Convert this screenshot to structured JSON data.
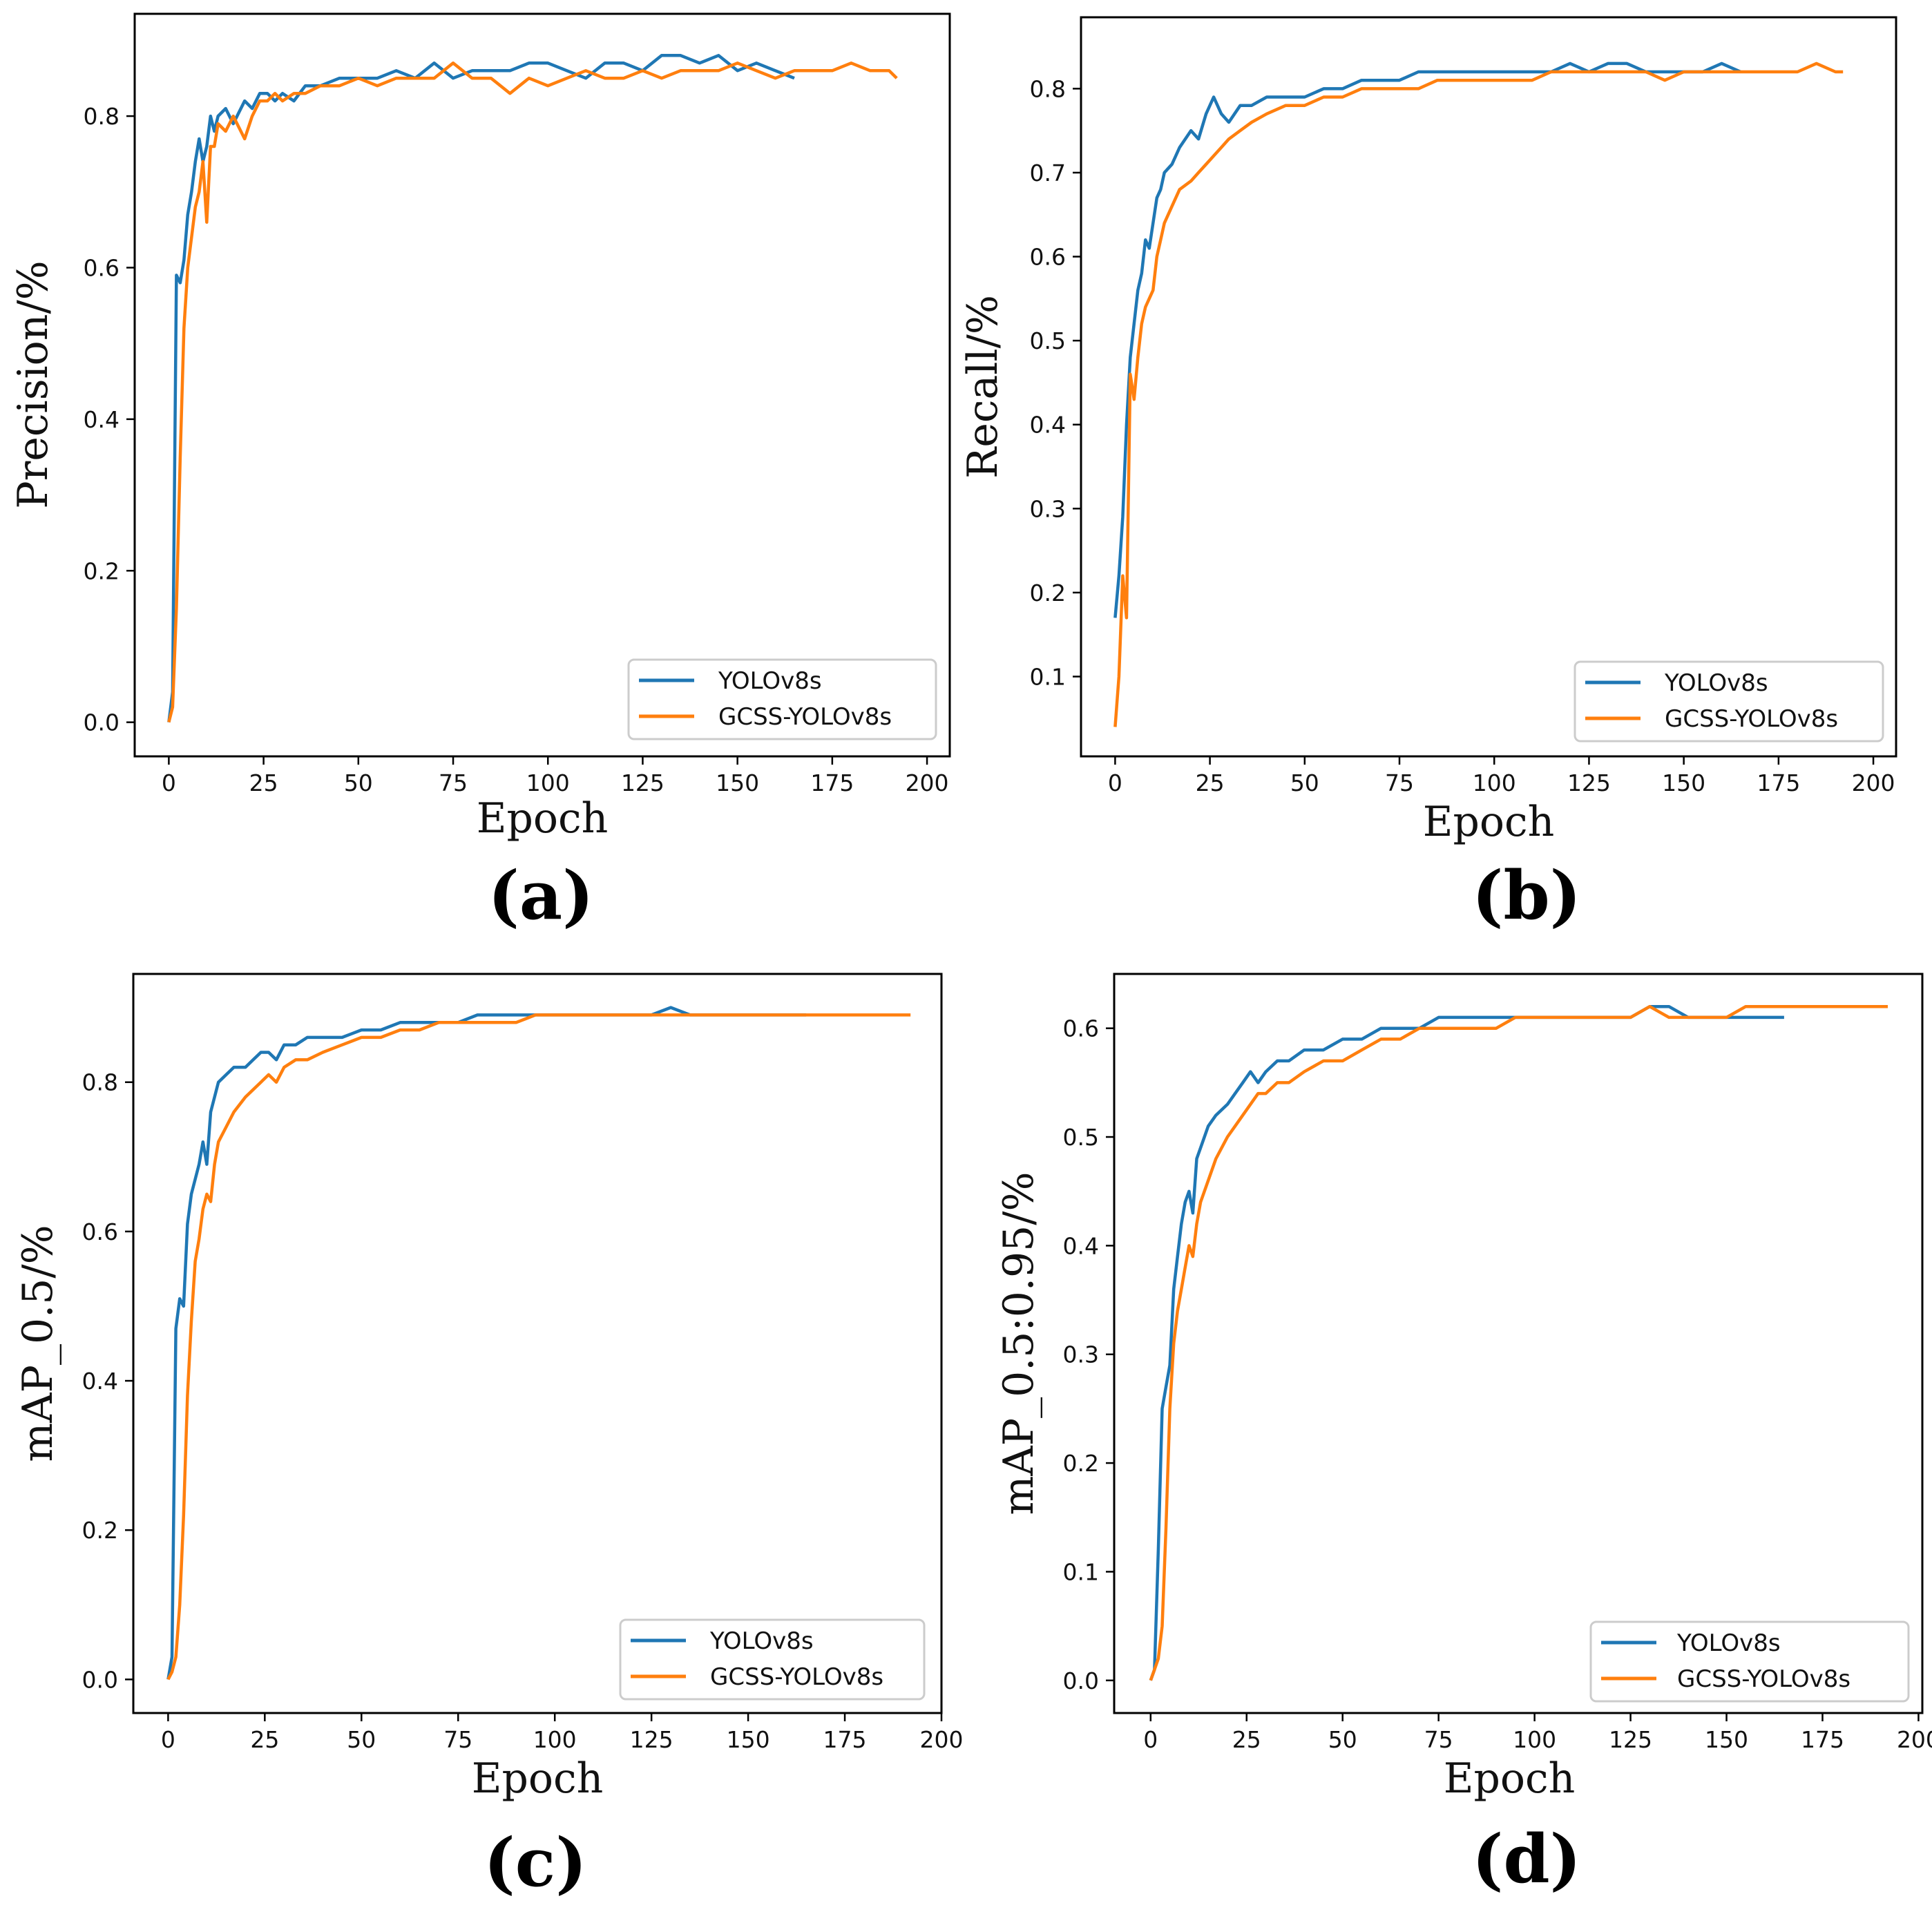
{
  "colors": {
    "series_1": "#1f77b4",
    "series_2": "#ff7f0e",
    "axis": "#000000",
    "background": "#ffffff"
  },
  "chart_data": [
    {
      "type": "line",
      "panel": "(a)",
      "xlabel": "Epoch",
      "ylabel": "Precision/%",
      "xlim": [
        -9,
        206
      ],
      "ylim": [
        -0.045,
        0.935
      ],
      "xticks": [
        0,
        25,
        50,
        75,
        100,
        125,
        150,
        175,
        200
      ],
      "yticks": [
        0.0,
        0.2,
        0.4,
        0.6,
        0.8
      ],
      "legend_loc": "lower-right",
      "series": [
        {
          "name": "YOLOv8s",
          "x": [
            0,
            1,
            2,
            3,
            4,
            5,
            6,
            7,
            8,
            9,
            10,
            11,
            12,
            13,
            15,
            17,
            20,
            22,
            24,
            26,
            28,
            30,
            33,
            36,
            40,
            45,
            50,
            55,
            60,
            65,
            70,
            75,
            80,
            85,
            90,
            95,
            100,
            105,
            110,
            115,
            120,
            125,
            130,
            135,
            140,
            145,
            150,
            155,
            160,
            165
          ],
          "y": [
            0.0,
            0.04,
            0.59,
            0.58,
            0.61,
            0.67,
            0.7,
            0.74,
            0.77,
            0.74,
            0.76,
            0.8,
            0.78,
            0.8,
            0.81,
            0.79,
            0.82,
            0.81,
            0.83,
            0.83,
            0.82,
            0.83,
            0.82,
            0.84,
            0.84,
            0.85,
            0.85,
            0.85,
            0.86,
            0.85,
            0.87,
            0.85,
            0.86,
            0.86,
            0.86,
            0.87,
            0.87,
            0.86,
            0.85,
            0.87,
            0.87,
            0.86,
            0.88,
            0.88,
            0.87,
            0.88,
            0.86,
            0.87,
            0.86,
            0.85
          ]
        },
        {
          "name": "GCSS-YOLOv8s",
          "x": [
            0,
            1,
            2,
            3,
            4,
            5,
            6,
            7,
            8,
            9,
            10,
            11,
            12,
            13,
            15,
            17,
            20,
            22,
            24,
            26,
            28,
            30,
            33,
            36,
            40,
            45,
            50,
            55,
            60,
            65,
            70,
            75,
            80,
            85,
            90,
            95,
            100,
            105,
            110,
            115,
            120,
            125,
            130,
            135,
            140,
            145,
            150,
            155,
            160,
            165,
            170,
            175,
            180,
            185,
            190,
            192
          ],
          "y": [
            0.0,
            0.02,
            0.15,
            0.35,
            0.52,
            0.6,
            0.64,
            0.68,
            0.7,
            0.74,
            0.66,
            0.76,
            0.76,
            0.79,
            0.78,
            0.8,
            0.77,
            0.8,
            0.82,
            0.82,
            0.83,
            0.82,
            0.83,
            0.83,
            0.84,
            0.84,
            0.85,
            0.84,
            0.85,
            0.85,
            0.85,
            0.87,
            0.85,
            0.85,
            0.83,
            0.85,
            0.84,
            0.85,
            0.86,
            0.85,
            0.85,
            0.86,
            0.85,
            0.86,
            0.86,
            0.86,
            0.87,
            0.86,
            0.85,
            0.86,
            0.86,
            0.86,
            0.87,
            0.86,
            0.86,
            0.85
          ]
        }
      ]
    },
    {
      "type": "line",
      "panel": "(b)",
      "xlabel": "Epoch",
      "ylabel": "Recall/%",
      "xlim": [
        -9,
        206
      ],
      "ylim": [
        0.005,
        0.885
      ],
      "xticks": [
        0,
        25,
        50,
        75,
        100,
        125,
        150,
        175,
        200
      ],
      "yticks": [
        0.1,
        0.2,
        0.3,
        0.4,
        0.5,
        0.6,
        0.7,
        0.8
      ],
      "legend_loc": "lower-right",
      "series": [
        {
          "name": "YOLOv8s",
          "x": [
            0,
            1,
            2,
            3,
            4,
            5,
            6,
            7,
            8,
            9,
            10,
            11,
            12,
            13,
            15,
            17,
            20,
            22,
            24,
            26,
            28,
            30,
            33,
            36,
            40,
            45,
            50,
            55,
            60,
            65,
            70,
            75,
            80,
            85,
            90,
            95,
            100,
            105,
            110,
            115,
            120,
            125,
            130,
            135,
            140,
            145,
            150,
            155,
            160,
            165
          ],
          "y": [
            0.17,
            0.22,
            0.29,
            0.4,
            0.48,
            0.52,
            0.56,
            0.58,
            0.62,
            0.61,
            0.64,
            0.67,
            0.68,
            0.7,
            0.71,
            0.73,
            0.75,
            0.74,
            0.77,
            0.79,
            0.77,
            0.76,
            0.78,
            0.78,
            0.79,
            0.79,
            0.79,
            0.8,
            0.8,
            0.81,
            0.81,
            0.81,
            0.82,
            0.82,
            0.82,
            0.82,
            0.82,
            0.82,
            0.82,
            0.82,
            0.83,
            0.82,
            0.83,
            0.83,
            0.82,
            0.82,
            0.82,
            0.82,
            0.83,
            0.82
          ]
        },
        {
          "name": "GCSS-YOLOv8s",
          "x": [
            0,
            1,
            2,
            3,
            4,
            5,
            6,
            7,
            8,
            9,
            10,
            11,
            12,
            13,
            15,
            17,
            20,
            22,
            24,
            26,
            28,
            30,
            33,
            36,
            40,
            45,
            50,
            55,
            60,
            65,
            70,
            75,
            80,
            85,
            90,
            95,
            100,
            105,
            110,
            115,
            120,
            125,
            130,
            135,
            140,
            145,
            150,
            155,
            160,
            165,
            170,
            175,
            180,
            185,
            190,
            192
          ],
          "y": [
            0.04,
            0.1,
            0.22,
            0.17,
            0.46,
            0.43,
            0.48,
            0.52,
            0.54,
            0.55,
            0.56,
            0.6,
            0.62,
            0.64,
            0.66,
            0.68,
            0.69,
            0.7,
            0.71,
            0.72,
            0.73,
            0.74,
            0.75,
            0.76,
            0.77,
            0.78,
            0.78,
            0.79,
            0.79,
            0.8,
            0.8,
            0.8,
            0.8,
            0.81,
            0.81,
            0.81,
            0.81,
            0.81,
            0.81,
            0.82,
            0.82,
            0.82,
            0.82,
            0.82,
            0.82,
            0.81,
            0.82,
            0.82,
            0.82,
            0.82,
            0.82,
            0.82,
            0.82,
            0.83,
            0.82,
            0.82
          ]
        }
      ]
    },
    {
      "type": "line",
      "panel": "(c)",
      "xlabel": "Epoch",
      "ylabel": "mAP_0.5/%",
      "xlim": [
        -9,
        200
      ],
      "ylim": [
        -0.045,
        0.945
      ],
      "xticks": [
        0,
        25,
        50,
        75,
        100,
        125,
        150,
        175,
        200
      ],
      "yticks": [
        0.0,
        0.2,
        0.4,
        0.6,
        0.8
      ],
      "legend_loc": "lower-right",
      "series": [
        {
          "name": "YOLOv8s",
          "x": [
            0,
            1,
            2,
            3,
            4,
            5,
            6,
            7,
            8,
            9,
            10,
            11,
            12,
            13,
            15,
            17,
            20,
            22,
            24,
            26,
            28,
            30,
            33,
            36,
            40,
            45,
            50,
            55,
            60,
            65,
            70,
            75,
            80,
            85,
            90,
            95,
            100,
            105,
            110,
            115,
            120,
            125,
            130,
            135,
            140,
            145,
            150,
            155,
            160,
            165
          ],
          "y": [
            0.0,
            0.03,
            0.47,
            0.51,
            0.5,
            0.61,
            0.65,
            0.67,
            0.69,
            0.72,
            0.69,
            0.76,
            0.78,
            0.8,
            0.81,
            0.82,
            0.82,
            0.83,
            0.84,
            0.84,
            0.83,
            0.85,
            0.85,
            0.86,
            0.86,
            0.86,
            0.87,
            0.87,
            0.88,
            0.88,
            0.88,
            0.88,
            0.89,
            0.89,
            0.89,
            0.89,
            0.89,
            0.89,
            0.89,
            0.89,
            0.89,
            0.89,
            0.9,
            0.89,
            0.89,
            0.89,
            0.89,
            0.89,
            0.89,
            0.89
          ]
        },
        {
          "name": "GCSS-YOLOv8s",
          "x": [
            0,
            1,
            2,
            3,
            4,
            5,
            6,
            7,
            8,
            9,
            10,
            11,
            12,
            13,
            15,
            17,
            20,
            22,
            24,
            26,
            28,
            30,
            33,
            36,
            40,
            45,
            50,
            55,
            60,
            65,
            70,
            75,
            80,
            85,
            90,
            95,
            100,
            105,
            110,
            115,
            120,
            125,
            130,
            135,
            140,
            145,
            150,
            155,
            160,
            165,
            170,
            175,
            180,
            185,
            190,
            192
          ],
          "y": [
            0.0,
            0.01,
            0.03,
            0.1,
            0.22,
            0.38,
            0.48,
            0.56,
            0.59,
            0.63,
            0.65,
            0.64,
            0.69,
            0.72,
            0.74,
            0.76,
            0.78,
            0.79,
            0.8,
            0.81,
            0.8,
            0.82,
            0.83,
            0.83,
            0.84,
            0.85,
            0.86,
            0.86,
            0.87,
            0.87,
            0.88,
            0.88,
            0.88,
            0.88,
            0.88,
            0.89,
            0.89,
            0.89,
            0.89,
            0.89,
            0.89,
            0.89,
            0.89,
            0.89,
            0.89,
            0.89,
            0.89,
            0.89,
            0.89,
            0.89,
            0.89,
            0.89,
            0.89,
            0.89,
            0.89,
            0.89
          ]
        }
      ]
    },
    {
      "type": "line",
      "panel": "(d)",
      "xlabel": "Epoch",
      "ylabel": "mAP_0.5:0.95/%",
      "xlim": [
        -9.5,
        201
      ],
      "ylim": [
        -0.03,
        0.65
      ],
      "xticks": [
        0,
        25,
        50,
        75,
        100,
        125,
        150,
        175,
        200
      ],
      "yticks": [
        0.0,
        0.1,
        0.2,
        0.3,
        0.4,
        0.5,
        0.6
      ],
      "legend_loc": "lower-right",
      "series": [
        {
          "name": "YOLOv8s",
          "x": [
            0,
            1,
            2,
            3,
            4,
            5,
            6,
            7,
            8,
            9,
            10,
            11,
            12,
            13,
            15,
            17,
            20,
            22,
            24,
            26,
            28,
            30,
            33,
            36,
            40,
            45,
            50,
            55,
            60,
            65,
            70,
            75,
            80,
            85,
            90,
            95,
            100,
            105,
            110,
            115,
            120,
            125,
            130,
            135,
            140,
            145,
            150,
            155,
            160,
            165
          ],
          "y": [
            0.0,
            0.01,
            0.12,
            0.25,
            0.27,
            0.29,
            0.36,
            0.39,
            0.42,
            0.44,
            0.45,
            0.43,
            0.48,
            0.49,
            0.51,
            0.52,
            0.53,
            0.54,
            0.55,
            0.56,
            0.55,
            0.56,
            0.57,
            0.57,
            0.58,
            0.58,
            0.59,
            0.59,
            0.6,
            0.6,
            0.6,
            0.61,
            0.61,
            0.61,
            0.61,
            0.61,
            0.61,
            0.61,
            0.61,
            0.61,
            0.61,
            0.61,
            0.62,
            0.62,
            0.61,
            0.61,
            0.61,
            0.61,
            0.61,
            0.61
          ]
        },
        {
          "name": "GCSS-YOLOv8s",
          "x": [
            0,
            1,
            2,
            3,
            4,
            5,
            6,
            7,
            8,
            9,
            10,
            11,
            12,
            13,
            15,
            17,
            20,
            22,
            24,
            26,
            28,
            30,
            33,
            36,
            40,
            45,
            50,
            55,
            60,
            65,
            70,
            75,
            80,
            85,
            90,
            95,
            100,
            105,
            110,
            115,
            120,
            125,
            130,
            135,
            140,
            145,
            150,
            155,
            160,
            165,
            170,
            175,
            180,
            185,
            190,
            192
          ],
          "y": [
            0.0,
            0.01,
            0.02,
            0.05,
            0.14,
            0.25,
            0.31,
            0.34,
            0.36,
            0.38,
            0.4,
            0.39,
            0.42,
            0.44,
            0.46,
            0.48,
            0.5,
            0.51,
            0.52,
            0.53,
            0.54,
            0.54,
            0.55,
            0.55,
            0.56,
            0.57,
            0.57,
            0.58,
            0.59,
            0.59,
            0.6,
            0.6,
            0.6,
            0.6,
            0.6,
            0.61,
            0.61,
            0.61,
            0.61,
            0.61,
            0.61,
            0.61,
            0.62,
            0.61,
            0.61,
            0.61,
            0.61,
            0.62,
            0.62,
            0.62,
            0.62,
            0.62,
            0.62,
            0.62,
            0.62,
            0.62
          ]
        }
      ]
    }
  ]
}
